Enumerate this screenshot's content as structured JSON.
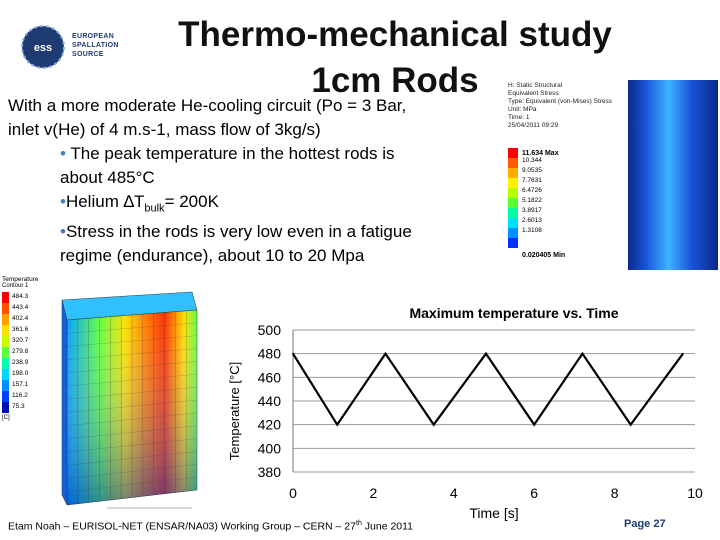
{
  "logo": {
    "lines": [
      "EUROPEAN",
      "SPALLATION",
      "SOURCE"
    ],
    "mark_text": "ess"
  },
  "title": {
    "line1": "Thermo-mechanical study",
    "line2": "1cm Rods"
  },
  "body": {
    "intro1": "With a more moderate He-cooling circuit (Po = 3 Bar,",
    "intro2": "inlet v(He) of 4 m.s-1, mass flow of 3kg/s)",
    "bullet1a": "The peak temperature in the hottest rods is",
    "bullet1b": "about 485°C",
    "bullet2_prefix": "Helium ",
    "bullet2_delta": "∆T",
    "bullet2_sub": "bulk",
    "bullet2_suffix": "= 200K",
    "bullet3a": "Stress in the rods is very low even in a fatigue",
    "bullet3b": "regime (endurance), about 10 to 20 Mpa"
  },
  "stress_image": {
    "header": [
      "H: Static Structural",
      "Equivalent Stress",
      "Type: Equivalent (von-Mises) Stress",
      "Unit: MPa",
      "Time: 1",
      "25/04/2011 09:29"
    ],
    "max_label": "11.634 Max",
    "min_label": "0.020405 Min",
    "legend_values": [
      "10.344",
      "9.0535",
      "7.7631",
      "6.4726",
      "5.1822",
      "3.8917",
      "2.6013",
      "1.3108"
    ],
    "colors": [
      "#ff0000",
      "#ff5a00",
      "#ffae00",
      "#fff200",
      "#b6ff00",
      "#5aff30",
      "#00ffa0",
      "#00e0ff",
      "#0090ff",
      "#0030ff"
    ]
  },
  "thermal_legend": {
    "title": "Temperature",
    "subtitle": "Contour 1",
    "values": [
      "484.3",
      "443.4",
      "402.4",
      "361.6",
      "320.7",
      "279.8",
      "238.9",
      "198.0",
      "157.1",
      "116.2",
      "75.3"
    ],
    "unit": "[C]",
    "colors": [
      "#ff0000",
      "#ff5200",
      "#ffa000",
      "#ffe000",
      "#c8ff00",
      "#60ff40",
      "#00ffb0",
      "#00d8ff",
      "#0090ff",
      "#0040ff",
      "#0010b0"
    ]
  },
  "chart_data": {
    "type": "line",
    "title": "Maximum temperature vs. Time",
    "xlabel": "Time [s]",
    "ylabel": "Temperature [°C]",
    "xlim": [
      0,
      10
    ],
    "ylim": [
      380,
      500
    ],
    "x_ticks": [
      "0",
      "2",
      "4",
      "6",
      "8",
      "10"
    ],
    "y_ticks": [
      "500",
      "480",
      "460",
      "440",
      "420",
      "400",
      "380"
    ],
    "grid": "horizontal",
    "series": [
      {
        "x": [
          0.0,
          1.1,
          1.1,
          2.3,
          2.3,
          3.5,
          3.5,
          4.8,
          4.8,
          6.0,
          6.0,
          7.2,
          7.2,
          8.4,
          8.4,
          9.7
        ],
        "y": [
          480,
          420,
          420,
          480,
          480,
          420,
          420,
          480,
          480,
          420,
          420,
          480,
          480,
          420,
          420,
          480
        ]
      }
    ]
  },
  "footer": {
    "text_before": "Etam Noah – EURISOL-NET (ENSAR/NA03) Working Group – CERN – 27",
    "sup": "th",
    "text_after": " June 2011",
    "page": "Page 27"
  },
  "colors": {
    "brand": "#1f3b73",
    "bullet": "#4a78c4"
  }
}
